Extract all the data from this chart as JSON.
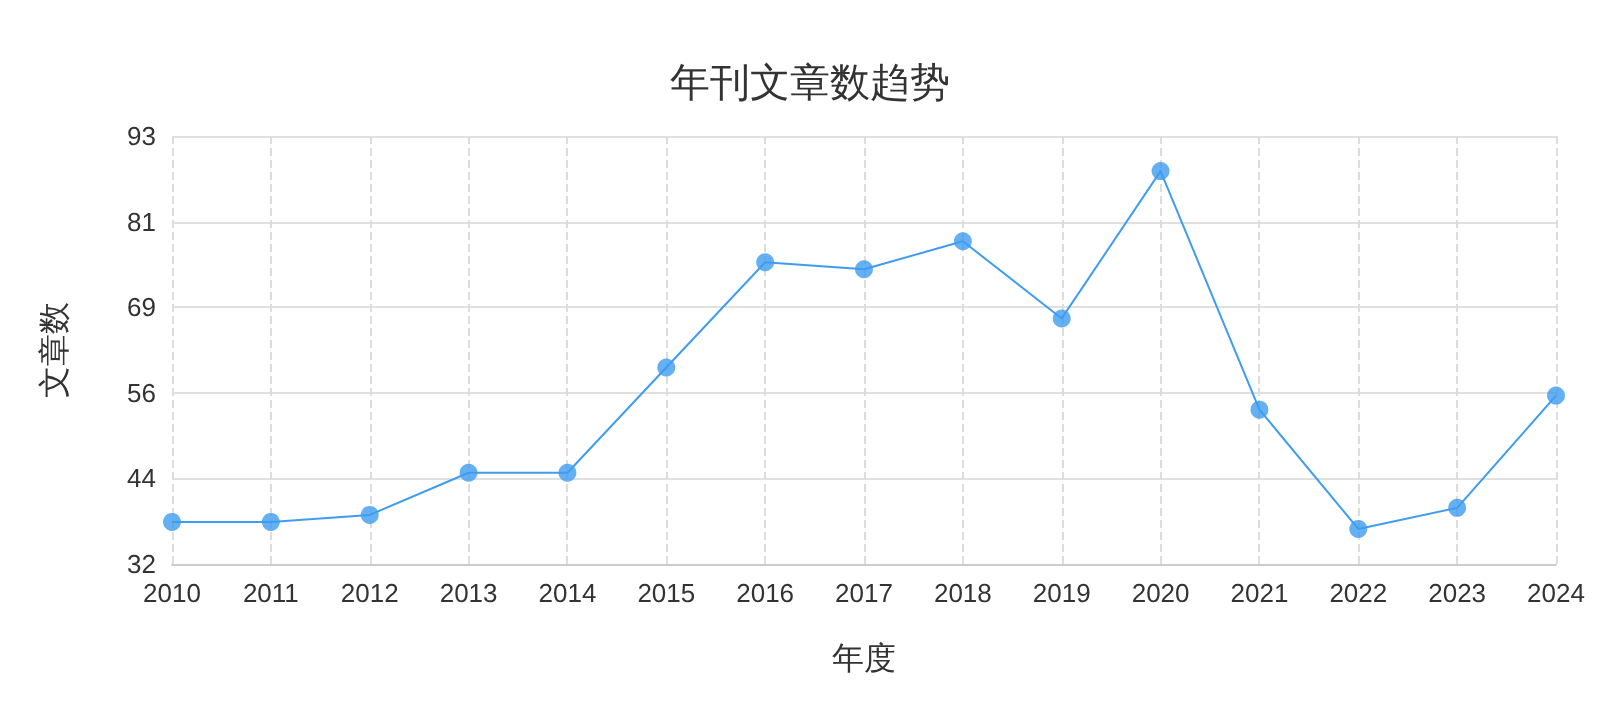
{
  "chart_data": {
    "type": "line",
    "title": "年刊文章数趋势",
    "xlabel": "年度",
    "ylabel": "文章数",
    "categories": [
      "2010",
      "2011",
      "2012",
      "2013",
      "2014",
      "2015",
      "2016",
      "2017",
      "2018",
      "2019",
      "2020",
      "2021",
      "2022",
      "2023",
      "2024"
    ],
    "series": [
      {
        "color": "#3f9cf0",
        "values": [
          38,
          38,
          39,
          45,
          45,
          60,
          75,
          74,
          78,
          67,
          88,
          54,
          37,
          40,
          56
        ]
      }
    ],
    "ylim": [
      32,
      93
    ],
    "yticks": [
      32,
      {
        "value": 44.2,
        "label": "44"
      },
      {
        "value": 56.4,
        "label": "56"
      },
      {
        "value": 68.6,
        "label": "69"
      },
      {
        "value": 80.8,
        "label": "81"
      },
      93
    ],
    "grid": true,
    "marker": "circle",
    "line_style": "solid"
  }
}
